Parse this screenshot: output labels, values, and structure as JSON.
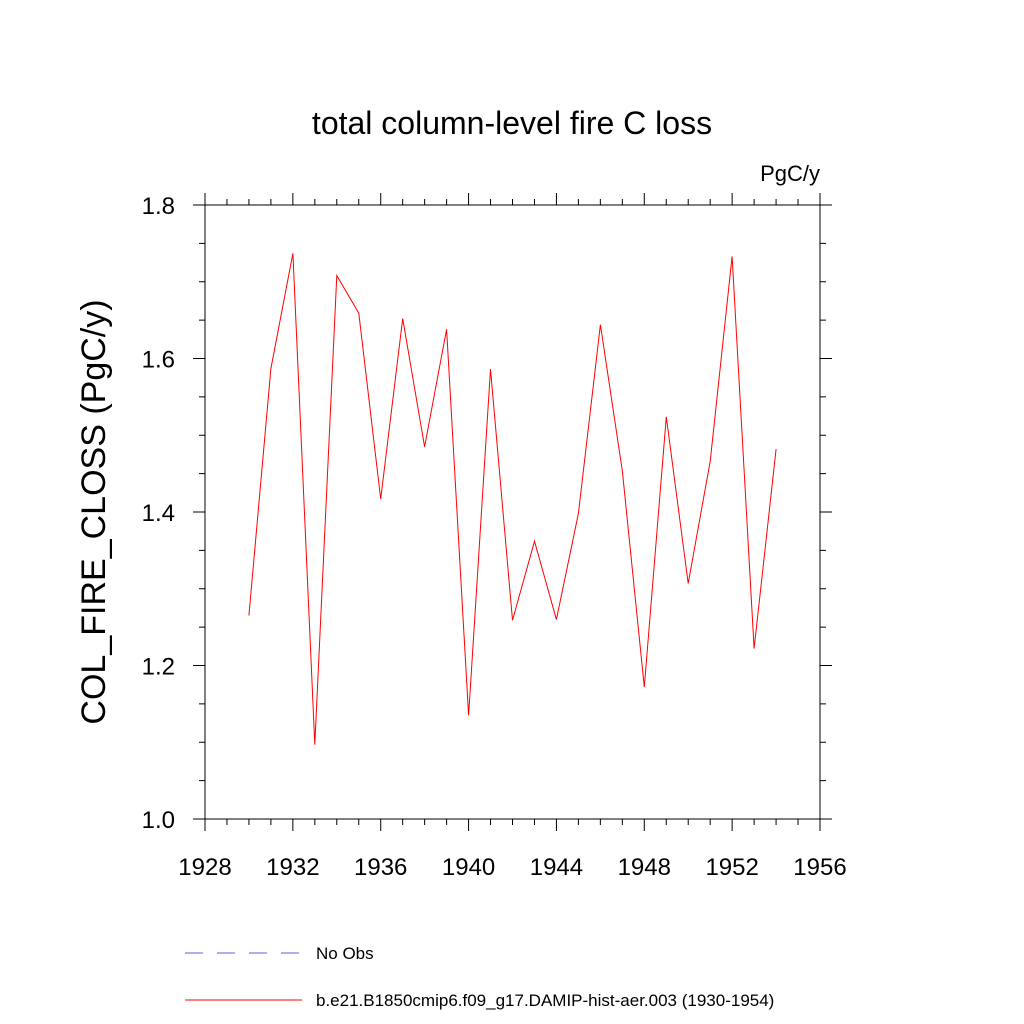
{
  "chart_data": {
    "type": "line",
    "title": "total column-level fire C loss",
    "units_label": "PgC/y",
    "xlabel": "",
    "ylabel": "COL_FIRE_CLOSS  (PgC/y)",
    "xlim": [
      1928,
      1956
    ],
    "ylim": [
      1.0,
      1.8
    ],
    "x_ticks": [
      1928,
      1932,
      1936,
      1940,
      1944,
      1948,
      1952,
      1956
    ],
    "y_ticks": [
      1.0,
      1.2,
      1.4,
      1.6,
      1.8
    ],
    "y_tick_labels": [
      "1.0",
      "1.2",
      "1.4",
      "1.6",
      "1.8"
    ],
    "grid": false,
    "legend_position": "bottom",
    "series": [
      {
        "name": "b.e21.B1850cmip6.f09_g17.DAMIP-hist-aer.003 (1930-1954)",
        "color": "#ff0000",
        "style": "solid",
        "x": [
          1930,
          1931,
          1932,
          1933,
          1934,
          1935,
          1936,
          1937,
          1938,
          1939,
          1940,
          1941,
          1942,
          1943,
          1944,
          1945,
          1946,
          1947,
          1948,
          1949,
          1950,
          1951,
          1952,
          1953,
          1954
        ],
        "y": [
          1.265,
          1.587,
          1.737,
          1.097,
          1.708,
          1.659,
          1.417,
          1.652,
          1.485,
          1.638,
          1.135,
          1.586,
          1.259,
          1.362,
          1.26,
          1.398,
          1.644,
          1.454,
          1.172,
          1.524,
          1.307,
          1.466,
          1.733,
          1.222,
          1.482
        ]
      }
    ],
    "legend": [
      {
        "label": "No Obs",
        "color": "#6a5acd",
        "style": "dashed"
      },
      {
        "label": "b.e21.B1850cmip6.f09_g17.DAMIP-hist-aer.003 (1930-1954)",
        "color": "#ff0000",
        "style": "solid"
      }
    ]
  }
}
